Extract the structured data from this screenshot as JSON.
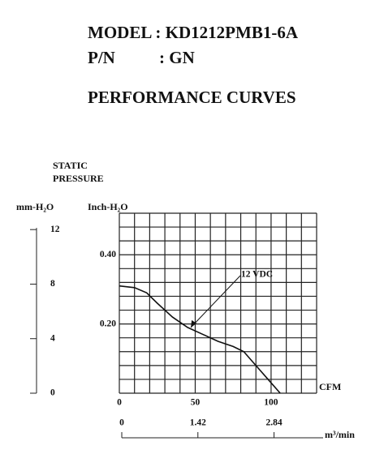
{
  "header": {
    "model": "MODEL : KD1212PMB1-6A",
    "pn_label": "P/N",
    "pn_value": ": GN",
    "title": "PERFORMANCE CURVES"
  },
  "chart_data": {
    "type": "line",
    "axis_title": [
      "STATIC",
      "PRESSURE"
    ],
    "ylabel": "Inch-H₂O",
    "y2label": "mm-H₂O",
    "xlabel": "CFM",
    "x2label": "m³/min",
    "x": [
      0,
      10,
      18,
      25,
      35,
      45,
      55,
      65,
      75,
      82,
      90,
      98,
      106
    ],
    "series": [
      {
        "name": "12 VDC",
        "color": "#111111",
        "values": [
          0.31,
          0.305,
          0.29,
          0.26,
          0.22,
          0.19,
          0.17,
          0.15,
          0.135,
          0.12,
          0.08,
          0.04,
          0
        ]
      }
    ],
    "xlim": [
      0,
      130
    ],
    "xticks": [
      0,
      50,
      100
    ],
    "ylim": [
      0,
      0.52
    ],
    "yticks": [
      {
        "value": 0.2,
        "label": "0.20"
      },
      {
        "value": 0.4,
        "label": "0.40"
      }
    ],
    "y2lim": [
      0,
      13.2
    ],
    "y2ticks": [
      0,
      4,
      8,
      12
    ],
    "x2lim": [
      0,
      3.68
    ],
    "x2ticks": [
      0,
      1.42,
      2.84
    ],
    "xgrid": [
      0,
      10,
      20,
      30,
      40,
      50,
      60,
      70,
      80,
      90,
      100,
      110,
      120,
      130
    ],
    "ygrid": [
      0,
      0.04,
      0.08,
      0.12,
      0.16,
      0.2,
      0.24,
      0.28,
      0.32,
      0.36,
      0.4,
      0.44,
      0.48,
      0.52
    ],
    "grid": true
  }
}
